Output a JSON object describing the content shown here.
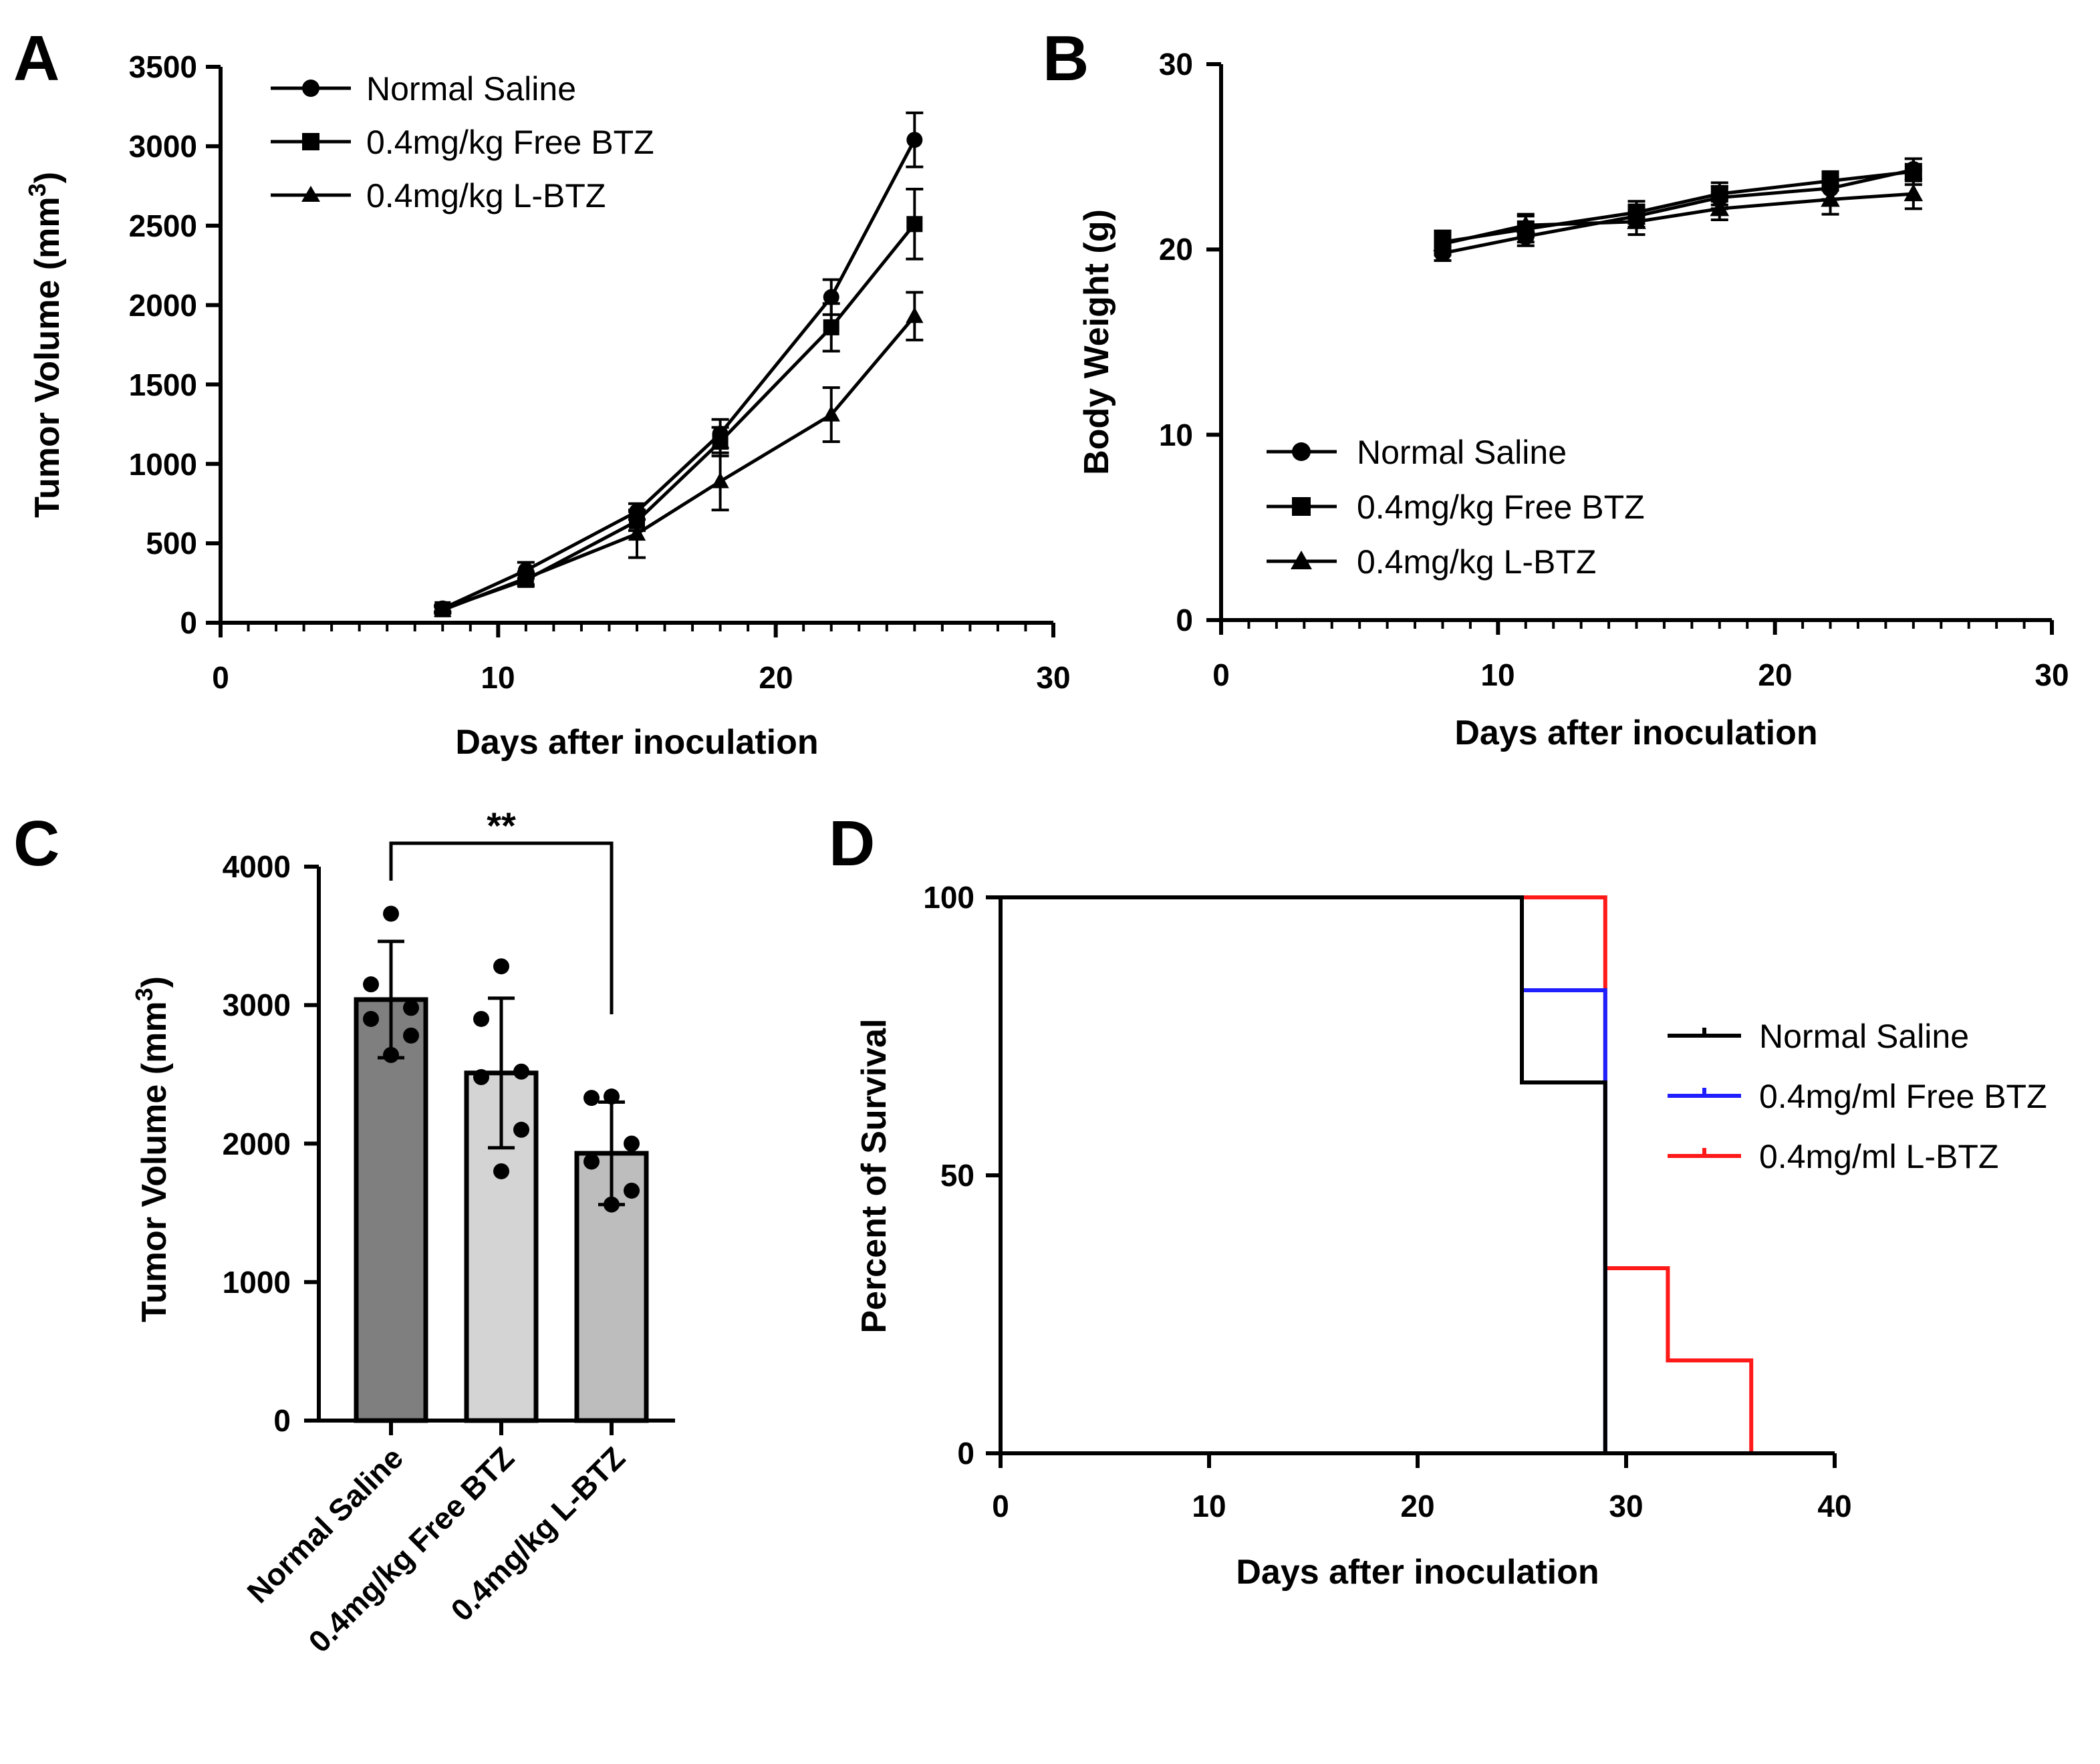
{
  "figure": {
    "panels": [
      "A",
      "B",
      "C",
      "D"
    ],
    "colors": {
      "ink": "#000000",
      "bar_saline": "#7f7f7f",
      "bar_free": "#d4d4d4",
      "bar_lbtz": "#bdbdbd",
      "d_saline": "#000000",
      "d_free": "#1f1fff",
      "d_lbtz": "#ff1a1a"
    }
  },
  "chart_data": [
    {
      "id": "A",
      "type": "line",
      "title": "",
      "xlabel": "Days after inoculation",
      "ylabel_main": "Tumor Volume (mm",
      "ylabel_sup": "3",
      "ylabel_end": ")",
      "xlim": [
        0,
        30
      ],
      "ylim": [
        0,
        3500
      ],
      "xticks": [
        "0",
        "10",
        "20",
        "30"
      ],
      "yticks": [
        "0",
        "500",
        "1000",
        "1500",
        "2000",
        "2500",
        "3000",
        "3500"
      ],
      "x": [
        8,
        11,
        15,
        18,
        22,
        25
      ],
      "legend_position": "top-left",
      "series": [
        {
          "name": "Normal Saline",
          "marker": "circle",
          "values": [
            90,
            330,
            700,
            1190,
            2050,
            3040
          ],
          "errors": [
            20,
            50,
            50,
            90,
            110,
            170
          ]
        },
        {
          "name": "0.4mg/kg Free BTZ",
          "marker": "square",
          "values": [
            85,
            270,
            640,
            1140,
            1860,
            2510
          ],
          "errors": [
            20,
            40,
            60,
            90,
            150,
            220
          ]
        },
        {
          "name": "0.4mg/kg L-BTZ",
          "marker": "triangle",
          "values": [
            80,
            280,
            560,
            890,
            1310,
            1930
          ],
          "errors": [
            20,
            40,
            150,
            180,
            170,
            150
          ]
        }
      ]
    },
    {
      "id": "B",
      "type": "line",
      "title": "",
      "xlabel": "Days after inoculation",
      "ylabel": "Body Weight (g)",
      "xlim": [
        0,
        30
      ],
      "ylim": [
        0,
        30
      ],
      "xticks": [
        "0",
        "10",
        "20",
        "30"
      ],
      "yticks": [
        "0",
        "10",
        "20",
        "30"
      ],
      "x": [
        8,
        11,
        15,
        18,
        22,
        25
      ],
      "legend_position": "bottom-left",
      "series": [
        {
          "name": "Normal Saline",
          "marker": "circle",
          "values": [
            19.8,
            20.7,
            21.8,
            22.8,
            23.3,
            24.3
          ],
          "errors": [
            0.4,
            0.5,
            0.6,
            0.6,
            0.6,
            0.6
          ]
        },
        {
          "name": "0.4mg/kg Free BTZ",
          "marker": "square",
          "values": [
            20.4,
            21.1,
            22.0,
            23.0,
            23.7,
            24.2
          ],
          "errors": [
            0.6,
            0.7,
            0.6,
            0.6,
            0.5,
            0.7
          ]
        },
        {
          "name": "0.4mg/kg L-BTZ",
          "marker": "triangle",
          "values": [
            20.3,
            21.3,
            21.5,
            22.2,
            22.7,
            23.0
          ],
          "errors": [
            0.6,
            0.6,
            0.7,
            0.6,
            0.8,
            0.8
          ]
        }
      ]
    },
    {
      "id": "C",
      "type": "bar",
      "title": "",
      "xlabel": "",
      "ylabel_main": "Tumor Volume (mm",
      "ylabel_sup": "3",
      "ylabel_end": ")",
      "ylim": [
        0,
        4000
      ],
      "yticks": [
        "0",
        "1000",
        "2000",
        "3000",
        "4000"
      ],
      "categories": [
        "Normal Saline",
        "0.4mg/kg Free BTZ",
        "0.4mg/kg L-BTZ"
      ],
      "values": [
        3040,
        2510,
        1930
      ],
      "errors": [
        420,
        540,
        370
      ],
      "points": [
        [
          3660,
          3150,
          2980,
          2900,
          2780,
          2640
        ],
        [
          3280,
          2900,
          2520,
          2480,
          2100,
          1800
        ],
        [
          2340,
          2330,
          2000,
          1870,
          1660,
          1560
        ]
      ],
      "significance": {
        "from": 0,
        "to": 2,
        "label": "**"
      }
    },
    {
      "id": "D",
      "type": "line",
      "subtype": "survival-step",
      "title": "",
      "xlabel": "Days after inoculation",
      "ylabel": "Percent of Survival",
      "xlim": [
        0,
        40
      ],
      "ylim": [
        0,
        100
      ],
      "xticks": [
        "0",
        "10",
        "20",
        "30",
        "40"
      ],
      "yticks": [
        "0",
        "50",
        "100"
      ],
      "legend_position": "right",
      "series": [
        {
          "name": "Normal Saline",
          "x": [
            0,
            25,
            25,
            29,
            29
          ],
          "y": [
            100,
            100,
            66.7,
            66.7,
            0
          ]
        },
        {
          "name": "0.4mg/ml Free BTZ",
          "x": [
            0,
            25,
            25,
            29,
            29
          ],
          "y": [
            100,
            100,
            83.3,
            83.3,
            0
          ]
        },
        {
          "name": "0.4mg/ml L-BTZ",
          "x": [
            0,
            29,
            29,
            32,
            32,
            36,
            36
          ],
          "y": [
            100,
            100,
            33.3,
            33.3,
            16.7,
            16.7,
            0
          ]
        }
      ]
    }
  ]
}
